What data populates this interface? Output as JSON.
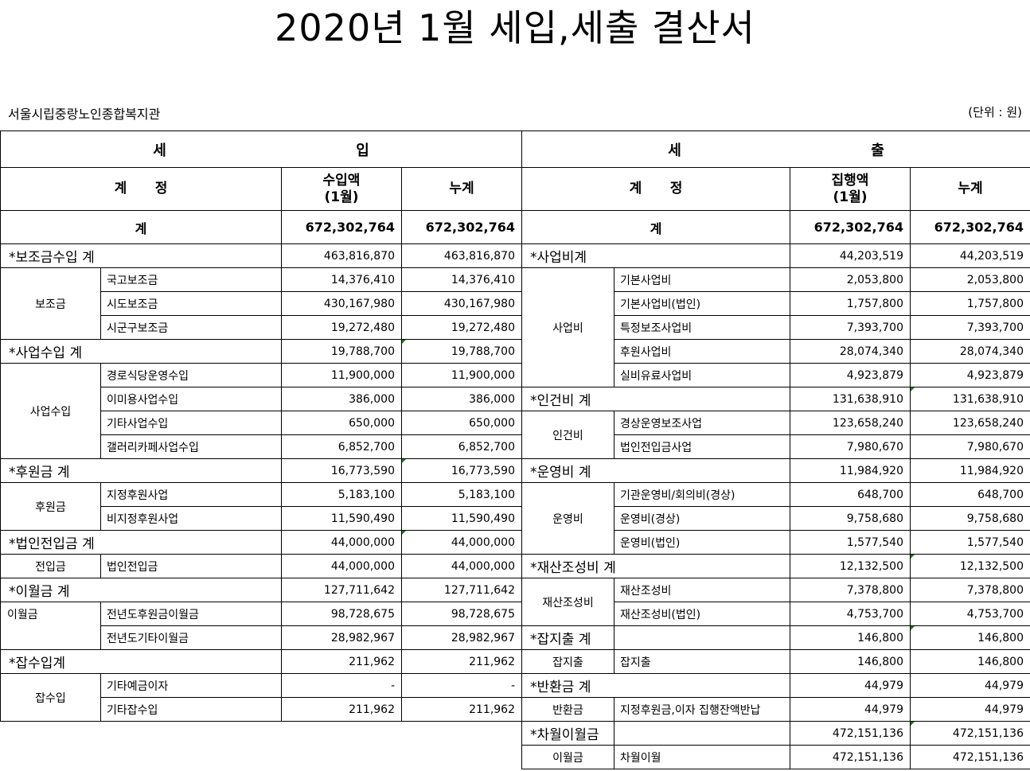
{
  "title": "2020년 1월 세입,세출 결산서",
  "organization": "서울시립중랑노인종합복지관",
  "unit_note": "(단위 : 원)",
  "income": {
    "header_a": "세",
    "header_b": "입",
    "col_account": "계      정",
    "col_amount_l1": "수입액",
    "col_amount_l2": "(1월)",
    "col_total": "누계",
    "total_label": "계",
    "total_amount": "672,302,764",
    "total_cum": "672,302,764",
    "sections": [
      {
        "label": "*보조금수입 계",
        "amount": "463,816,870",
        "cum": "463,816,870"
      },
      {
        "label": "*사업수입 계",
        "amount": "19,788,700",
        "cum": "19,788,700"
      },
      {
        "label": "*후원금 계",
        "amount": "16,773,590",
        "cum": "16,773,590"
      },
      {
        "label": "*법인전입금 계",
        "amount": "44,000,000",
        "cum": "44,000,000"
      },
      {
        "label": "*이월금 계",
        "amount": "127,711,642",
        "cum": "127,711,642"
      },
      {
        "label": "*잡수입계",
        "amount": "211,962",
        "cum": "211,962"
      }
    ],
    "groups": {
      "subsidy": "보조금",
      "business": "사업수입",
      "donation": "후원금",
      "transfer": "전입금",
      "carryover": "이월금",
      "misc": "잡수입"
    },
    "items": [
      {
        "name": "국고보조금",
        "amount": "14,376,410",
        "cum": "14,376,410"
      },
      {
        "name": "시도보조금",
        "amount": "430,167,980",
        "cum": "430,167,980"
      },
      {
        "name": "시군구보조금",
        "amount": "19,272,480",
        "cum": "19,272,480"
      },
      {
        "name": "경로식당운영수입",
        "amount": "11,900,000",
        "cum": "11,900,000"
      },
      {
        "name": "이미용사업수입",
        "amount": "386,000",
        "cum": "386,000"
      },
      {
        "name": "기타사업수입",
        "amount": "650,000",
        "cum": "650,000"
      },
      {
        "name": "갤러리카페사업수입",
        "amount": "6,852,700",
        "cum": "6,852,700"
      },
      {
        "name": "지정후원사업",
        "amount": "5,183,100",
        "cum": "5,183,100"
      },
      {
        "name": "비지정후원사업",
        "amount": "11,590,490",
        "cum": "11,590,490"
      },
      {
        "name": "법인전입금",
        "amount": "44,000,000",
        "cum": "44,000,000"
      },
      {
        "name": "전년도후원금이월금",
        "amount": "98,728,675",
        "cum": "98,728,675"
      },
      {
        "name": "전년도기타이월금",
        "amount": "28,982,967",
        "cum": "28,982,967"
      },
      {
        "name": "기타예금이자",
        "amount": "-",
        "cum": "-"
      },
      {
        "name": "기타잡수입",
        "amount": "211,962",
        "cum": "211,962"
      }
    ]
  },
  "expense": {
    "header_a": "세",
    "header_b": "출",
    "col_account": "계      정",
    "col_amount_l1": "집행액",
    "col_amount_l2": "(1월)",
    "col_total": "누계",
    "total_label": "계",
    "total_amount": "672,302,764",
    "total_cum": "672,302,764",
    "sections": [
      {
        "label": "*사업비계",
        "amount": "44,203,519",
        "cum": "44,203,519"
      },
      {
        "label": "*인건비 계",
        "amount": "131,638,910",
        "cum": "131,638,910"
      },
      {
        "label": "*운영비 계",
        "amount": "11,984,920",
        "cum": "11,984,920"
      },
      {
        "label": "*재산조성비 계",
        "amount": "12,132,500",
        "cum": "12,132,500"
      },
      {
        "label": "*잡지출 계",
        "amount": "146,800",
        "cum": "146,800"
      },
      {
        "label": "*반환금 계",
        "amount": "44,979",
        "cum": "44,979"
      },
      {
        "label": "*차월이월금",
        "amount": "472,151,136",
        "cum": "472,151,136"
      }
    ],
    "groups": {
      "business": "사업비",
      "personnel": "인건비",
      "operating": "운영비",
      "property": "재산조성비",
      "misc": "잡지출",
      "refund": "반환금",
      "carryover": "이월금"
    },
    "items": [
      {
        "name": "기본사업비",
        "amount": "2,053,800",
        "cum": "2,053,800"
      },
      {
        "name": "기본사업비(법인)",
        "amount": "1,757,800",
        "cum": "1,757,800"
      },
      {
        "name": "특정보조사업비",
        "amount": "7,393,700",
        "cum": "7,393,700"
      },
      {
        "name": "후원사업비",
        "amount": "28,074,340",
        "cum": "28,074,340"
      },
      {
        "name": "실비유료사업비",
        "amount": "4,923,879",
        "cum": "4,923,879"
      },
      {
        "name": "경상운영보조사업",
        "amount": "123,658,240",
        "cum": "123,658,240"
      },
      {
        "name": "법인전입금사업",
        "amount": "7,980,670",
        "cum": "7,980,670"
      },
      {
        "name": "기관운영비/회의비(경상)",
        "amount": "648,700",
        "cum": "648,700"
      },
      {
        "name": "운영비(경상)",
        "amount": "9,758,680",
        "cum": "9,758,680"
      },
      {
        "name": "운영비(법인)",
        "amount": "1,577,540",
        "cum": "1,577,540"
      },
      {
        "name": "재산조성비",
        "amount": "7,378,800",
        "cum": "7,378,800"
      },
      {
        "name": "재산조성비(법인)",
        "amount": "4,753,700",
        "cum": "4,753,700"
      },
      {
        "name": "잡지출",
        "amount": "146,800",
        "cum": "146,800"
      },
      {
        "name": "지정후원금,이자 집행잔액반납",
        "amount": "44,979",
        "cum": "44,979"
      },
      {
        "name": "차월이월",
        "amount": "472,151,136",
        "cum": "472,151,136"
      }
    ]
  }
}
